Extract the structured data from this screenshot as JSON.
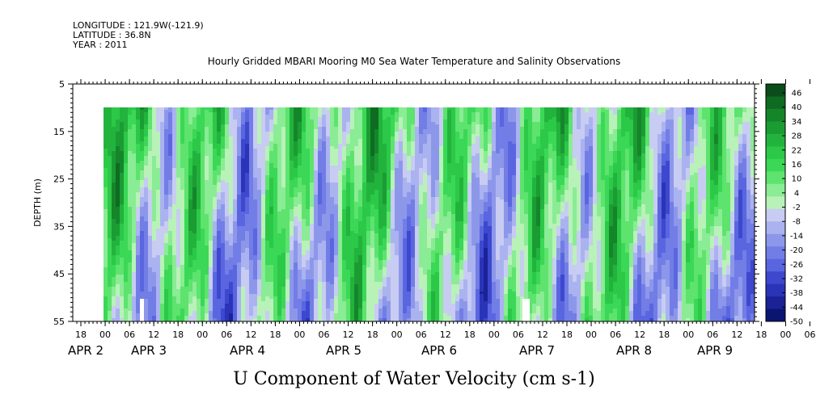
{
  "header": {
    "longitude": "LONGITUDE : 121.9W(-121.9)",
    "latitude": "LATITUDE : 36.8N",
    "year": "YEAR : 2011"
  },
  "chart_data": {
    "type": "heatmap",
    "title": "Hourly Gridded MBARI Mooring M0 Sea Water Temperature and Salinity Observations",
    "ylabel": "DEPTH (m)",
    "caption": "U Component of Water Velocity (cm s-1)",
    "ylim": [
      55,
      5
    ],
    "yticks": [
      "5",
      "15",
      "25",
      "35",
      "45",
      "55"
    ],
    "data_depth_range": [
      10,
      55
    ],
    "x_hour_ticks": [
      "18",
      "00",
      "06",
      "12",
      "18",
      "00",
      "06",
      "12",
      "18",
      "00",
      "06",
      "12",
      "18",
      "00",
      "06",
      "12",
      "18",
      "00",
      "06",
      "12",
      "18",
      "00",
      "06",
      "12",
      "18",
      "00",
      "06",
      "12",
      "18",
      "00",
      "06",
      "12"
    ],
    "x_day_labels": [
      "APR 2",
      "APR 3",
      "APR 4",
      "APR 5",
      "APR 6",
      "APR 7",
      "APR 8",
      "APR 9"
    ],
    "colorbar": {
      "range": [
        -50,
        50
      ],
      "tick_labels": [
        "46",
        "40",
        "34",
        "28",
        "22",
        "16",
        "10",
        "4",
        "-2",
        "-8",
        "-14",
        "-20",
        "-26",
        "-32",
        "-38",
        "-44",
        "-50"
      ],
      "colors": [
        "#0a4d1a",
        "#0f6b22",
        "#15852a",
        "#1b9c33",
        "#22b33d",
        "#2cc848",
        "#3ad856",
        "#5de36e",
        "#8aec94",
        "#b8f2b8",
        "#c8ccf2",
        "#aab3ef",
        "#8d97ea",
        "#727de6",
        "#5a66e0",
        "#3d48cf",
        "#2a34b8",
        "#1a2296",
        "#0b1470"
      ],
      "colors_note": "top to bottom"
    },
    "field_summary": "Alternating bands of positive (green) and negative (blue) velocity across depth 10-55 m; strongest positive near surface, stronger negative at depth"
  }
}
